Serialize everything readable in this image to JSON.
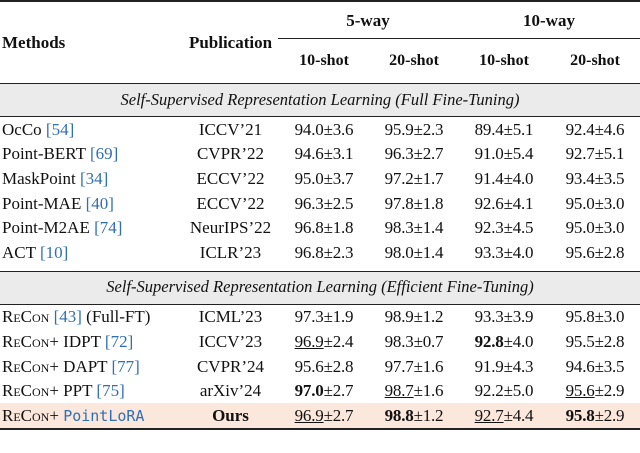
{
  "header": {
    "methods": "Methods",
    "publication": "Publication",
    "way5": "5-way",
    "way10": "10-way",
    "shot_a": "10-shot",
    "shot_b": "20-shot",
    "shot_c": "10-shot",
    "shot_d": "20-shot"
  },
  "section1": "Self-Supervised Representation Learning (Full Fine-Tuning)",
  "section2": "Self-Supervised Representation Learning (Efficient Fine-Tuning)",
  "rows1": [
    {
      "name": "OcCo ",
      "cite": "[54]",
      "pub": "ICCV’21",
      "v": [
        "94.0±3.6",
        "95.9±2.3",
        "89.4±5.1",
        "92.4±4.6"
      ]
    },
    {
      "name": "Point-BERT ",
      "cite": "[69]",
      "pub": "CVPR’22",
      "v": [
        "94.6±3.1",
        "96.3±2.7",
        "91.0±5.4",
        "92.7±5.1"
      ]
    },
    {
      "name": "MaskPoint ",
      "cite": "[34]",
      "pub": "ECCV’22",
      "v": [
        "95.0±3.7",
        "97.2±1.7",
        "91.4±4.0",
        "93.4±3.5"
      ]
    },
    {
      "name": "Point-MAE ",
      "cite": "[40]",
      "pub": "ECCV’22",
      "v": [
        "96.3±2.5",
        "97.8±1.8",
        "92.6±4.1",
        "95.0±3.0"
      ]
    },
    {
      "name": "Point-M2AE ",
      "cite": "[74]",
      "pub": "NeurIPS’22",
      "v": [
        "96.8±1.8",
        "98.3±1.4",
        "92.3±4.5",
        "95.0±3.0"
      ]
    },
    {
      "name": "ACT ",
      "cite": "[10]",
      "pub": "ICLR’23",
      "v": [
        "96.8±2.3",
        "98.0±1.4",
        "93.3±4.0",
        "95.6±2.8"
      ]
    }
  ],
  "rows2": [
    {
      "name": "ReCon ",
      "cite": "[43]",
      "suffix": " (Full-FT)",
      "pub": "ICML’23",
      "v": [
        "97.3±1.9",
        "98.9±1.2",
        "93.3±3.9",
        "95.8±3.0"
      ]
    },
    {
      "name": "ReCon+ IDPT ",
      "cite": "[72]",
      "suffix": "",
      "pub": "ICCV’23",
      "a": "96.9",
      "a2": "±2.4",
      "b": "98.3±0.7",
      "c": "92.8",
      "c2": "±4.0",
      "d": "95.5±2.8"
    },
    {
      "name": "ReCon+ DAPT ",
      "cite": "[77]",
      "suffix": "",
      "pub": "CVPR’24",
      "v": [
        "95.6±2.8",
        "97.7±1.6",
        "91.9±4.3",
        "94.6±3.5"
      ]
    },
    {
      "name": "ReCon+ PPT ",
      "cite": "[75]",
      "suffix": "",
      "pub": "arXiv’24",
      "a": "97.0",
      "a2": "±2.7",
      "b": "98.7",
      "b2": "±1.6",
      "c": "92.2±5.0",
      "d": "95.6",
      "d2": "±2.9"
    }
  ],
  "ours": {
    "prefix": "ReCon+ ",
    "method": "PointLoRA",
    "pub": "Ours",
    "a": "96.9",
    "a2": "±2.7",
    "b": "98.8",
    "b2": "±1.2",
    "c": "92.7",
    "c2": "±4.4",
    "d": "95.8",
    "d2": "±2.9"
  }
}
